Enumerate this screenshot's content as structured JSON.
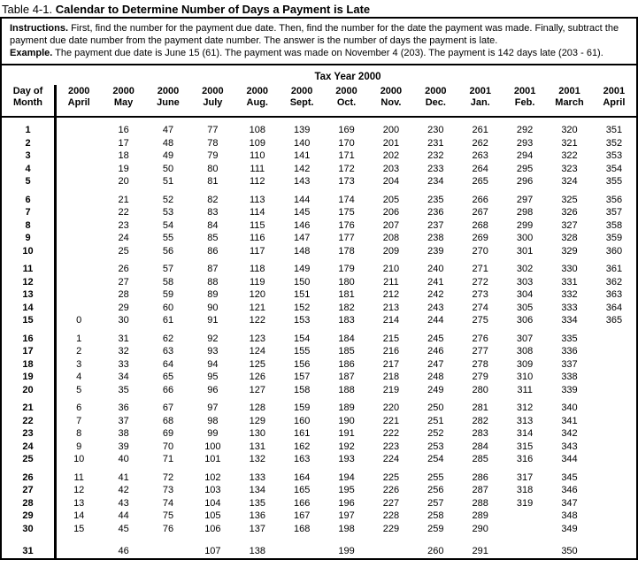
{
  "title": {
    "prefix": "Table 4-1.",
    "main": "Calendar to Determine Number of Days a Payment is Late"
  },
  "instructions": {
    "label": "Instructions.",
    "text": "First, find the number for the payment due date. Then, find the number for the date the payment was made. Finally, subtract the payment due date number from the payment date number. The answer is the number of days the payment is late.",
    "example_label": "Example.",
    "example_text": "The payment due date is June 15 (61). The payment was made on November 4 (203). The payment is 142 days late (203 - 61)."
  },
  "calendar": {
    "section_title": "Tax Year 2000",
    "day_header": [
      "Day of",
      "Month"
    ],
    "columns": [
      [
        "2000",
        "April"
      ],
      [
        "2000",
        "May"
      ],
      [
        "2000",
        "June"
      ],
      [
        "2000",
        "July"
      ],
      [
        "2000",
        "Aug."
      ],
      [
        "2000",
        "Sept."
      ],
      [
        "2000",
        "Oct."
      ],
      [
        "2000",
        "Nov."
      ],
      [
        "2000",
        "Dec."
      ],
      [
        "2001",
        "Jan."
      ],
      [
        "2001",
        "Feb."
      ],
      [
        "2001",
        "March"
      ],
      [
        "2001",
        "April"
      ]
    ],
    "groups": [
      {
        "rows": [
          [
            "1",
            "",
            "16",
            "47",
            "77",
            "108",
            "139",
            "169",
            "200",
            "230",
            "261",
            "292",
            "320",
            "351"
          ],
          [
            "2",
            "",
            "17",
            "48",
            "78",
            "109",
            "140",
            "170",
            "201",
            "231",
            "262",
            "293",
            "321",
            "352"
          ],
          [
            "3",
            "",
            "18",
            "49",
            "79",
            "110",
            "141",
            "171",
            "202",
            "232",
            "263",
            "294",
            "322",
            "353"
          ],
          [
            "4",
            "",
            "19",
            "50",
            "80",
            "111",
            "142",
            "172",
            "203",
            "233",
            "264",
            "295",
            "323",
            "354"
          ],
          [
            "5",
            "",
            "20",
            "51",
            "81",
            "112",
            "143",
            "173",
            "204",
            "234",
            "265",
            "296",
            "324",
            "355"
          ]
        ]
      },
      {
        "rows": [
          [
            "6",
            "",
            "21",
            "52",
            "82",
            "113",
            "144",
            "174",
            "205",
            "235",
            "266",
            "297",
            "325",
            "356"
          ],
          [
            "7",
            "",
            "22",
            "53",
            "83",
            "114",
            "145",
            "175",
            "206",
            "236",
            "267",
            "298",
            "326",
            "357"
          ],
          [
            "8",
            "",
            "23",
            "54",
            "84",
            "115",
            "146",
            "176",
            "207",
            "237",
            "268",
            "299",
            "327",
            "358"
          ],
          [
            "9",
            "",
            "24",
            "55",
            "85",
            "116",
            "147",
            "177",
            "208",
            "238",
            "269",
            "300",
            "328",
            "359"
          ],
          [
            "10",
            "",
            "25",
            "56",
            "86",
            "117",
            "148",
            "178",
            "209",
            "239",
            "270",
            "301",
            "329",
            "360"
          ]
        ]
      },
      {
        "rows": [
          [
            "11",
            "",
            "26",
            "57",
            "87",
            "118",
            "149",
            "179",
            "210",
            "240",
            "271",
            "302",
            "330",
            "361"
          ],
          [
            "12",
            "",
            "27",
            "58",
            "88",
            "119",
            "150",
            "180",
            "211",
            "241",
            "272",
            "303",
            "331",
            "362"
          ],
          [
            "13",
            "",
            "28",
            "59",
            "89",
            "120",
            "151",
            "181",
            "212",
            "242",
            "273",
            "304",
            "332",
            "363"
          ],
          [
            "14",
            "",
            "29",
            "60",
            "90",
            "121",
            "152",
            "182",
            "213",
            "243",
            "274",
            "305",
            "333",
            "364"
          ],
          [
            "15",
            "0",
            "30",
            "61",
            "91",
            "122",
            "153",
            "183",
            "214",
            "244",
            "275",
            "306",
            "334",
            "365"
          ]
        ]
      },
      {
        "rows": [
          [
            "16",
            "1",
            "31",
            "62",
            "92",
            "123",
            "154",
            "184",
            "215",
            "245",
            "276",
            "307",
            "335",
            ""
          ],
          [
            "17",
            "2",
            "32",
            "63",
            "93",
            "124",
            "155",
            "185",
            "216",
            "246",
            "277",
            "308",
            "336",
            ""
          ],
          [
            "18",
            "3",
            "33",
            "64",
            "94",
            "125",
            "156",
            "186",
            "217",
            "247",
            "278",
            "309",
            "337",
            ""
          ],
          [
            "19",
            "4",
            "34",
            "65",
            "95",
            "126",
            "157",
            "187",
            "218",
            "248",
            "279",
            "310",
            "338",
            ""
          ],
          [
            "20",
            "5",
            "35",
            "66",
            "96",
            "127",
            "158",
            "188",
            "219",
            "249",
            "280",
            "311",
            "339",
            ""
          ]
        ]
      },
      {
        "rows": [
          [
            "21",
            "6",
            "36",
            "67",
            "97",
            "128",
            "159",
            "189",
            "220",
            "250",
            "281",
            "312",
            "340",
            ""
          ],
          [
            "22",
            "7",
            "37",
            "68",
            "98",
            "129",
            "160",
            "190",
            "221",
            "251",
            "282",
            "313",
            "341",
            ""
          ],
          [
            "23",
            "8",
            "38",
            "69",
            "99",
            "130",
            "161",
            "191",
            "222",
            "252",
            "283",
            "314",
            "342",
            ""
          ],
          [
            "24",
            "9",
            "39",
            "70",
            "100",
            "131",
            "162",
            "192",
            "223",
            "253",
            "284",
            "315",
            "343",
            ""
          ],
          [
            "25",
            "10",
            "40",
            "71",
            "101",
            "132",
            "163",
            "193",
            "224",
            "254",
            "285",
            "316",
            "344",
            ""
          ]
        ]
      },
      {
        "rows": [
          [
            "26",
            "11",
            "41",
            "72",
            "102",
            "133",
            "164",
            "194",
            "225",
            "255",
            "286",
            "317",
            "345",
            ""
          ],
          [
            "27",
            "12",
            "42",
            "73",
            "103",
            "134",
            "165",
            "195",
            "226",
            "256",
            "287",
            "318",
            "346",
            ""
          ],
          [
            "28",
            "13",
            "43",
            "74",
            "104",
            "135",
            "166",
            "196",
            "227",
            "257",
            "288",
            "319",
            "347",
            ""
          ],
          [
            "29",
            "14",
            "44",
            "75",
            "105",
            "136",
            "167",
            "197",
            "228",
            "258",
            "289",
            "",
            "348",
            ""
          ],
          [
            "30",
            "15",
            "45",
            "76",
            "106",
            "137",
            "168",
            "198",
            "229",
            "259",
            "290",
            "",
            "349",
            ""
          ]
        ]
      },
      {
        "rows": [
          [
            "31",
            "",
            "46",
            "",
            "107",
            "138",
            "",
            "199",
            "",
            "260",
            "291",
            "",
            "350",
            ""
          ]
        ]
      }
    ]
  }
}
